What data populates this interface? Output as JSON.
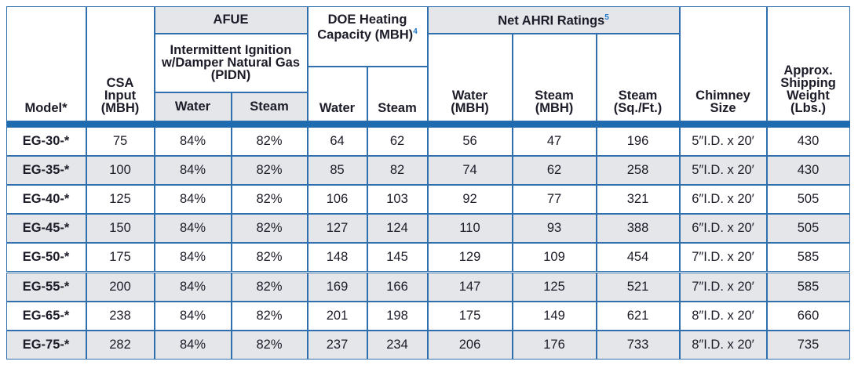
{
  "header": {
    "model": "Model*",
    "csa_input": "CSA Input (MBH)",
    "afue": {
      "title": "AFUE",
      "subtitle": "Intermittent Ignition w/Damper Natural Gas (PIDN)",
      "water": "Water",
      "steam": "Steam"
    },
    "doe": {
      "title": "DOE Heating Capacity (MBH)",
      "footnote": "4",
      "water": "Water",
      "steam": "Steam"
    },
    "ahri": {
      "title": "Net AHRI Ratings",
      "footnote": "5",
      "water": "Water (MBH)",
      "steam": "Steam (MBH)",
      "steam_sqft": "Steam (Sq./Ft.)"
    },
    "chimney": "Chimney Size",
    "weight": "Approx. Shipping Weight (Lbs.)"
  },
  "table": {
    "rows": [
      [
        "EG-30-*",
        75,
        "84%",
        "82%",
        64,
        62,
        56,
        47,
        196,
        "5″I.D. x 20′",
        430
      ],
      [
        "EG-35-*",
        100,
        "84%",
        "82%",
        85,
        82,
        74,
        62,
        258,
        "5″I.D. x 20′",
        430
      ],
      [
        "EG-40-*",
        125,
        "84%",
        "82%",
        106,
        103,
        92,
        77,
        321,
        "6″I.D. x 20′",
        505
      ],
      [
        "EG-45-*",
        150,
        "84%",
        "82%",
        127,
        124,
        110,
        93,
        388,
        "6″I.D. x 20′",
        505
      ],
      [
        "EG-50-*",
        175,
        "84%",
        "82%",
        148,
        145,
        129,
        109,
        454,
        "7″I.D. x 20′",
        585
      ],
      [
        "EG-55-*",
        200,
        "84%",
        "82%",
        169,
        166,
        147,
        125,
        521,
        "7″I.D. x 20′",
        585
      ],
      [
        "EG-65-*",
        238,
        "84%",
        "82%",
        201,
        198,
        175,
        149,
        621,
        "8″I.D. x 20′",
        660
      ],
      [
        "EG-75-*",
        282,
        "84%",
        "82%",
        237,
        234,
        206,
        176,
        733,
        "8″I.D. x 20′",
        735
      ]
    ]
  }
}
